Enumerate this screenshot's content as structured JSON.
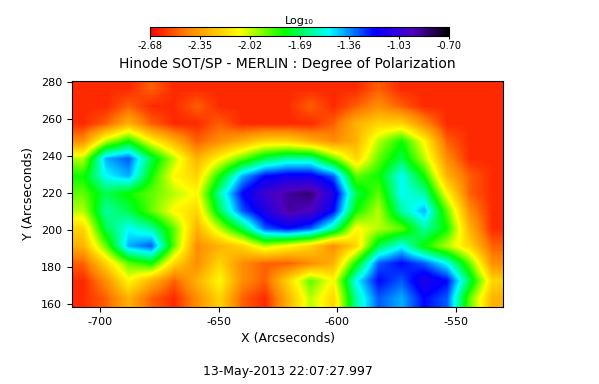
{
  "chart_data": {
    "type": "heatmap",
    "title": "Hinode SOT/SP - MERLIN : Degree of Polarization",
    "annotation": "13-May-2013 22:07:27.997",
    "xlabel": "X (Arcseconds)",
    "ylabel": "Y (Arcseconds)",
    "xlim": [
      -712,
      -530
    ],
    "ylim": [
      158,
      281
    ],
    "xticks": [
      -700,
      -650,
      -600,
      -550
    ],
    "yticks": [
      160,
      180,
      200,
      220,
      240,
      260,
      280
    ],
    "colorbar_label": "Log₁₀",
    "colorbar_range": [
      -2.68,
      -0.7
    ],
    "colorbar_ticks": [
      -2.68,
      -2.35,
      -2.02,
      -1.69,
      -1.36,
      -1.03,
      {
        "value": -0.7,
        "label": "-0.70"
      }
    ],
    "cells": [
      [
        -2.6,
        -2.5,
        -2.3,
        -2.5,
        -2.6,
        -2.4,
        -2.2,
        -2.5,
        -2.6,
        -2.3,
        -2.0,
        -2.2,
        -1.6,
        -1.3,
        -1.4,
        -1.2,
        -1.3,
        -1.9,
        -2.3
      ],
      [
        -2.6,
        -2.4,
        -2.1,
        -2.3,
        -2.5,
        -2.3,
        -2.1,
        -2.4,
        -2.5,
        -2.2,
        -1.9,
        -2.1,
        -1.5,
        -1.2,
        -1.3,
        -1.1,
        -1.2,
        -1.7,
        -2.2
      ],
      [
        -2.5,
        -2.2,
        -1.9,
        -1.8,
        -2.2,
        -2.4,
        -2.2,
        -2.4,
        -2.5,
        -2.5,
        -2.4,
        -2.3,
        -1.8,
        -1.3,
        -1.2,
        -1.3,
        -1.5,
        -1.9,
        -2.4
      ],
      [
        -2.3,
        -1.9,
        -1.4,
        -1.3,
        -1.9,
        -2.4,
        -2.3,
        -2.2,
        -2.0,
        -2.1,
        -2.2,
        -2.4,
        -2.2,
        -1.7,
        -1.5,
        -1.8,
        -2.0,
        -2.2,
        -2.5
      ],
      [
        -2.2,
        -1.7,
        -1.5,
        -1.6,
        -1.9,
        -2.3,
        -2.0,
        -1.7,
        -1.3,
        -1.2,
        -1.3,
        -1.6,
        -2.1,
        -2.0,
        -1.9,
        -1.6,
        -1.8,
        -2.3,
        -2.6
      ],
      [
        -2.0,
        -1.6,
        -1.7,
        -1.9,
        -2.1,
        -2.2,
        -1.7,
        -1.3,
        -1.1,
        -0.9,
        -0.95,
        -1.2,
        -1.8,
        -2.0,
        -1.6,
        -1.4,
        -1.9,
        -2.4,
        -2.6
      ],
      [
        -1.9,
        -1.7,
        -1.8,
        -1.9,
        -2.0,
        -2.1,
        -1.6,
        -1.2,
        -1.0,
        -0.9,
        -0.85,
        -1.1,
        -1.7,
        -1.9,
        -1.5,
        -1.6,
        -2.1,
        -2.5,
        -2.6
      ],
      [
        -1.8,
        -1.5,
        -1.4,
        -1.8,
        -2.1,
        -2.2,
        -1.8,
        -1.4,
        -1.2,
        -1.15,
        -1.15,
        -1.3,
        -1.9,
        -1.8,
        -1.5,
        -1.8,
        -2.3,
        -2.5,
        -2.6
      ],
      [
        -2.0,
        -1.4,
        -1.3,
        -1.7,
        -2.0,
        -2.3,
        -2.1,
        -1.9,
        -1.7,
        -1.6,
        -1.6,
        -1.9,
        -2.2,
        -1.9,
        -1.7,
        -2.0,
        -2.4,
        -2.6,
        -2.6
      ],
      [
        -2.4,
        -2.0,
        -1.8,
        -2.1,
        -2.3,
        -2.5,
        -2.4,
        -2.3,
        -2.2,
        -2.2,
        -2.3,
        -2.4,
        -2.3,
        -2.0,
        -1.8,
        -2.1,
        -2.5,
        -2.6,
        -2.6
      ],
      [
        -2.6,
        -2.5,
        -2.3,
        -2.5,
        -2.6,
        -2.6,
        -2.5,
        -2.6,
        -2.6,
        -2.6,
        -2.6,
        -2.5,
        -2.3,
        -2.2,
        -2.2,
        -2.4,
        -2.6,
        -2.6,
        -2.6
      ],
      [
        -2.6,
        -2.6,
        -2.5,
        -2.6,
        -2.6,
        -2.5,
        -2.6,
        -2.6,
        -2.6,
        -2.6,
        -2.5,
        -2.6,
        -2.5,
        -2.4,
        -2.5,
        -2.6,
        -2.6,
        -2.6,
        -2.6
      ],
      [
        -2.6,
        -2.6,
        -2.6,
        -2.5,
        -2.6,
        -2.6,
        -2.6,
        -2.6,
        -2.6,
        -2.6,
        -2.6,
        -2.6,
        -2.6,
        -2.5,
        -2.6,
        -2.6,
        -2.6,
        -2.6,
        -2.6
      ]
    ]
  }
}
